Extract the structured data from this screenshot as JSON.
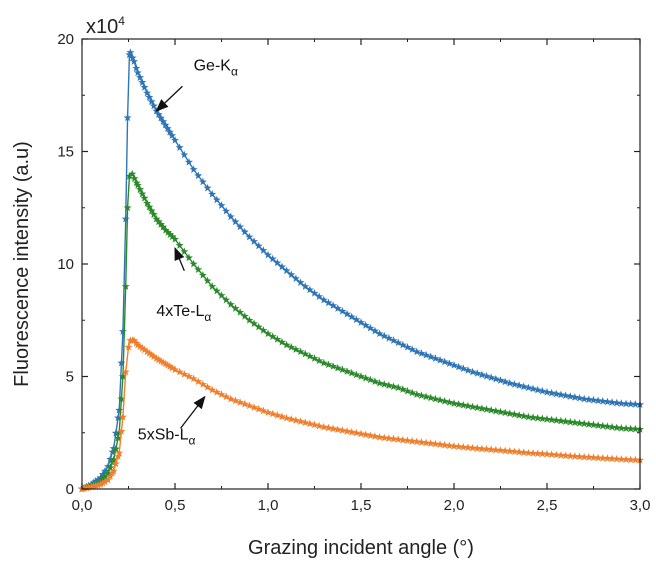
{
  "chart_data": {
    "type": "scatter",
    "title": "",
    "xlabel": "Grazing incident angle (°)",
    "ylabel": "Fluorescence intensity (a.u)",
    "y_multiplier": "x10",
    "y_multiplier_exp": "4",
    "xlim": [
      0,
      3
    ],
    "ylim": [
      0,
      20
    ],
    "grid": false,
    "x_ticks": [
      0,
      0.5,
      1,
      1.5,
      2,
      2.5,
      3
    ],
    "x_tick_labels": [
      "0,0",
      "0,5",
      "1,0",
      "1,5",
      "2,0",
      "2,5",
      "3,0"
    ],
    "y_ticks": [
      0,
      5,
      10,
      15,
      20
    ],
    "y_tick_labels": [
      "0",
      "5",
      "10",
      "15",
      "20"
    ],
    "series": [
      {
        "name": "Ge-Kα",
        "label_base": "Ge-K",
        "label_sub": "α",
        "color": "#2e75b6",
        "points": [
          [
            0,
            0
          ],
          [
            0.05,
            0.2
          ],
          [
            0.1,
            0.5
          ],
          [
            0.14,
            1.0
          ],
          [
            0.17,
            1.8
          ],
          [
            0.2,
            3.5
          ],
          [
            0.22,
            7
          ],
          [
            0.235,
            12
          ],
          [
            0.245,
            16.5
          ],
          [
            0.255,
            19.3
          ],
          [
            0.26,
            19.4
          ],
          [
            0.28,
            19.0
          ],
          [
            0.3,
            18.5
          ],
          [
            0.35,
            17.6
          ],
          [
            0.4,
            16.8
          ],
          [
            0.5,
            15.5
          ],
          [
            0.6,
            14.2
          ],
          [
            0.7,
            13.1
          ],
          [
            0.8,
            12.1
          ],
          [
            0.9,
            11.2
          ],
          [
            1.0,
            10.4
          ],
          [
            1.1,
            9.7
          ],
          [
            1.2,
            9.0
          ],
          [
            1.3,
            8.4
          ],
          [
            1.4,
            7.9
          ],
          [
            1.5,
            7.4
          ],
          [
            1.6,
            6.9
          ],
          [
            1.7,
            6.5
          ],
          [
            1.8,
            6.1
          ],
          [
            1.9,
            5.8
          ],
          [
            2.0,
            5.5
          ],
          [
            2.1,
            5.2
          ],
          [
            2.2,
            4.95
          ],
          [
            2.3,
            4.7
          ],
          [
            2.4,
            4.5
          ],
          [
            2.5,
            4.3
          ],
          [
            2.6,
            4.15
          ],
          [
            2.7,
            4.0
          ],
          [
            2.8,
            3.9
          ],
          [
            2.9,
            3.8
          ],
          [
            3.0,
            3.75
          ]
        ]
      },
      {
        "name": "4xTe-Lα",
        "label_base": "4xTe-L",
        "label_sub": "α",
        "color": "#2a8a2a",
        "points": [
          [
            0,
            0
          ],
          [
            0.05,
            0.15
          ],
          [
            0.1,
            0.3
          ],
          [
            0.14,
            0.7
          ],
          [
            0.17,
            1.3
          ],
          [
            0.2,
            2.5
          ],
          [
            0.22,
            5
          ],
          [
            0.235,
            9
          ],
          [
            0.245,
            12.5
          ],
          [
            0.255,
            13.9
          ],
          [
            0.27,
            14.0
          ],
          [
            0.3,
            13.5
          ],
          [
            0.35,
            12.7
          ],
          [
            0.4,
            12.0
          ],
          [
            0.45,
            11.5
          ],
          [
            0.5,
            11.1
          ],
          [
            0.6,
            10.0
          ],
          [
            0.7,
            9.0
          ],
          [
            0.8,
            8.2
          ],
          [
            0.9,
            7.5
          ],
          [
            1.0,
            6.9
          ],
          [
            1.1,
            6.4
          ],
          [
            1.2,
            6.0
          ],
          [
            1.3,
            5.6
          ],
          [
            1.4,
            5.3
          ],
          [
            1.5,
            5.0
          ],
          [
            1.6,
            4.7
          ],
          [
            1.7,
            4.5
          ],
          [
            1.8,
            4.2
          ],
          [
            1.9,
            4.0
          ],
          [
            2.0,
            3.8
          ],
          [
            2.1,
            3.65
          ],
          [
            2.2,
            3.5
          ],
          [
            2.3,
            3.35
          ],
          [
            2.4,
            3.2
          ],
          [
            2.5,
            3.1
          ],
          [
            2.6,
            3.0
          ],
          [
            2.7,
            2.9
          ],
          [
            2.8,
            2.8
          ],
          [
            2.9,
            2.7
          ],
          [
            3.0,
            2.65
          ]
        ]
      },
      {
        "name": "5xSb-Lα",
        "label_base": "5xSb-L",
        "label_sub": "α",
        "color": "#f07f2d",
        "points": [
          [
            0,
            0
          ],
          [
            0.05,
            0.1
          ],
          [
            0.1,
            0.2
          ],
          [
            0.14,
            0.4
          ],
          [
            0.17,
            0.8
          ],
          [
            0.2,
            1.6
          ],
          [
            0.22,
            3.2
          ],
          [
            0.235,
            5.2
          ],
          [
            0.25,
            6.3
          ],
          [
            0.26,
            6.6
          ],
          [
            0.28,
            6.6
          ],
          [
            0.3,
            6.4
          ],
          [
            0.35,
            6.1
          ],
          [
            0.4,
            5.8
          ],
          [
            0.5,
            5.3
          ],
          [
            0.6,
            4.9
          ],
          [
            0.7,
            4.4
          ],
          [
            0.8,
            4.0
          ],
          [
            0.9,
            3.7
          ],
          [
            1.0,
            3.4
          ],
          [
            1.1,
            3.15
          ],
          [
            1.2,
            2.95
          ],
          [
            1.3,
            2.75
          ],
          [
            1.4,
            2.6
          ],
          [
            1.5,
            2.45
          ],
          [
            1.6,
            2.3
          ],
          [
            1.7,
            2.2
          ],
          [
            1.8,
            2.1
          ],
          [
            1.9,
            2.0
          ],
          [
            2.0,
            1.9
          ],
          [
            2.1,
            1.82
          ],
          [
            2.2,
            1.75
          ],
          [
            2.3,
            1.68
          ],
          [
            2.4,
            1.6
          ],
          [
            2.5,
            1.55
          ],
          [
            2.6,
            1.48
          ],
          [
            2.7,
            1.42
          ],
          [
            2.8,
            1.37
          ],
          [
            2.9,
            1.32
          ],
          [
            3.0,
            1.28
          ]
        ]
      }
    ],
    "annotations": [
      {
        "series": 0,
        "text_at": [
          0.6,
          18.6
        ],
        "arrow_from": [
          0.54,
          17.9
        ],
        "arrow_to": [
          0.4,
          16.8
        ]
      },
      {
        "series": 1,
        "text_at": [
          0.4,
          7.7
        ],
        "arrow_from": [
          0.55,
          9.7
        ],
        "arrow_to": [
          0.5,
          10.7
        ]
      },
      {
        "series": 2,
        "text_at": [
          0.3,
          2.2
        ],
        "arrow_from": [
          0.53,
          2.7
        ],
        "arrow_to": [
          0.66,
          4.1
        ]
      }
    ]
  }
}
